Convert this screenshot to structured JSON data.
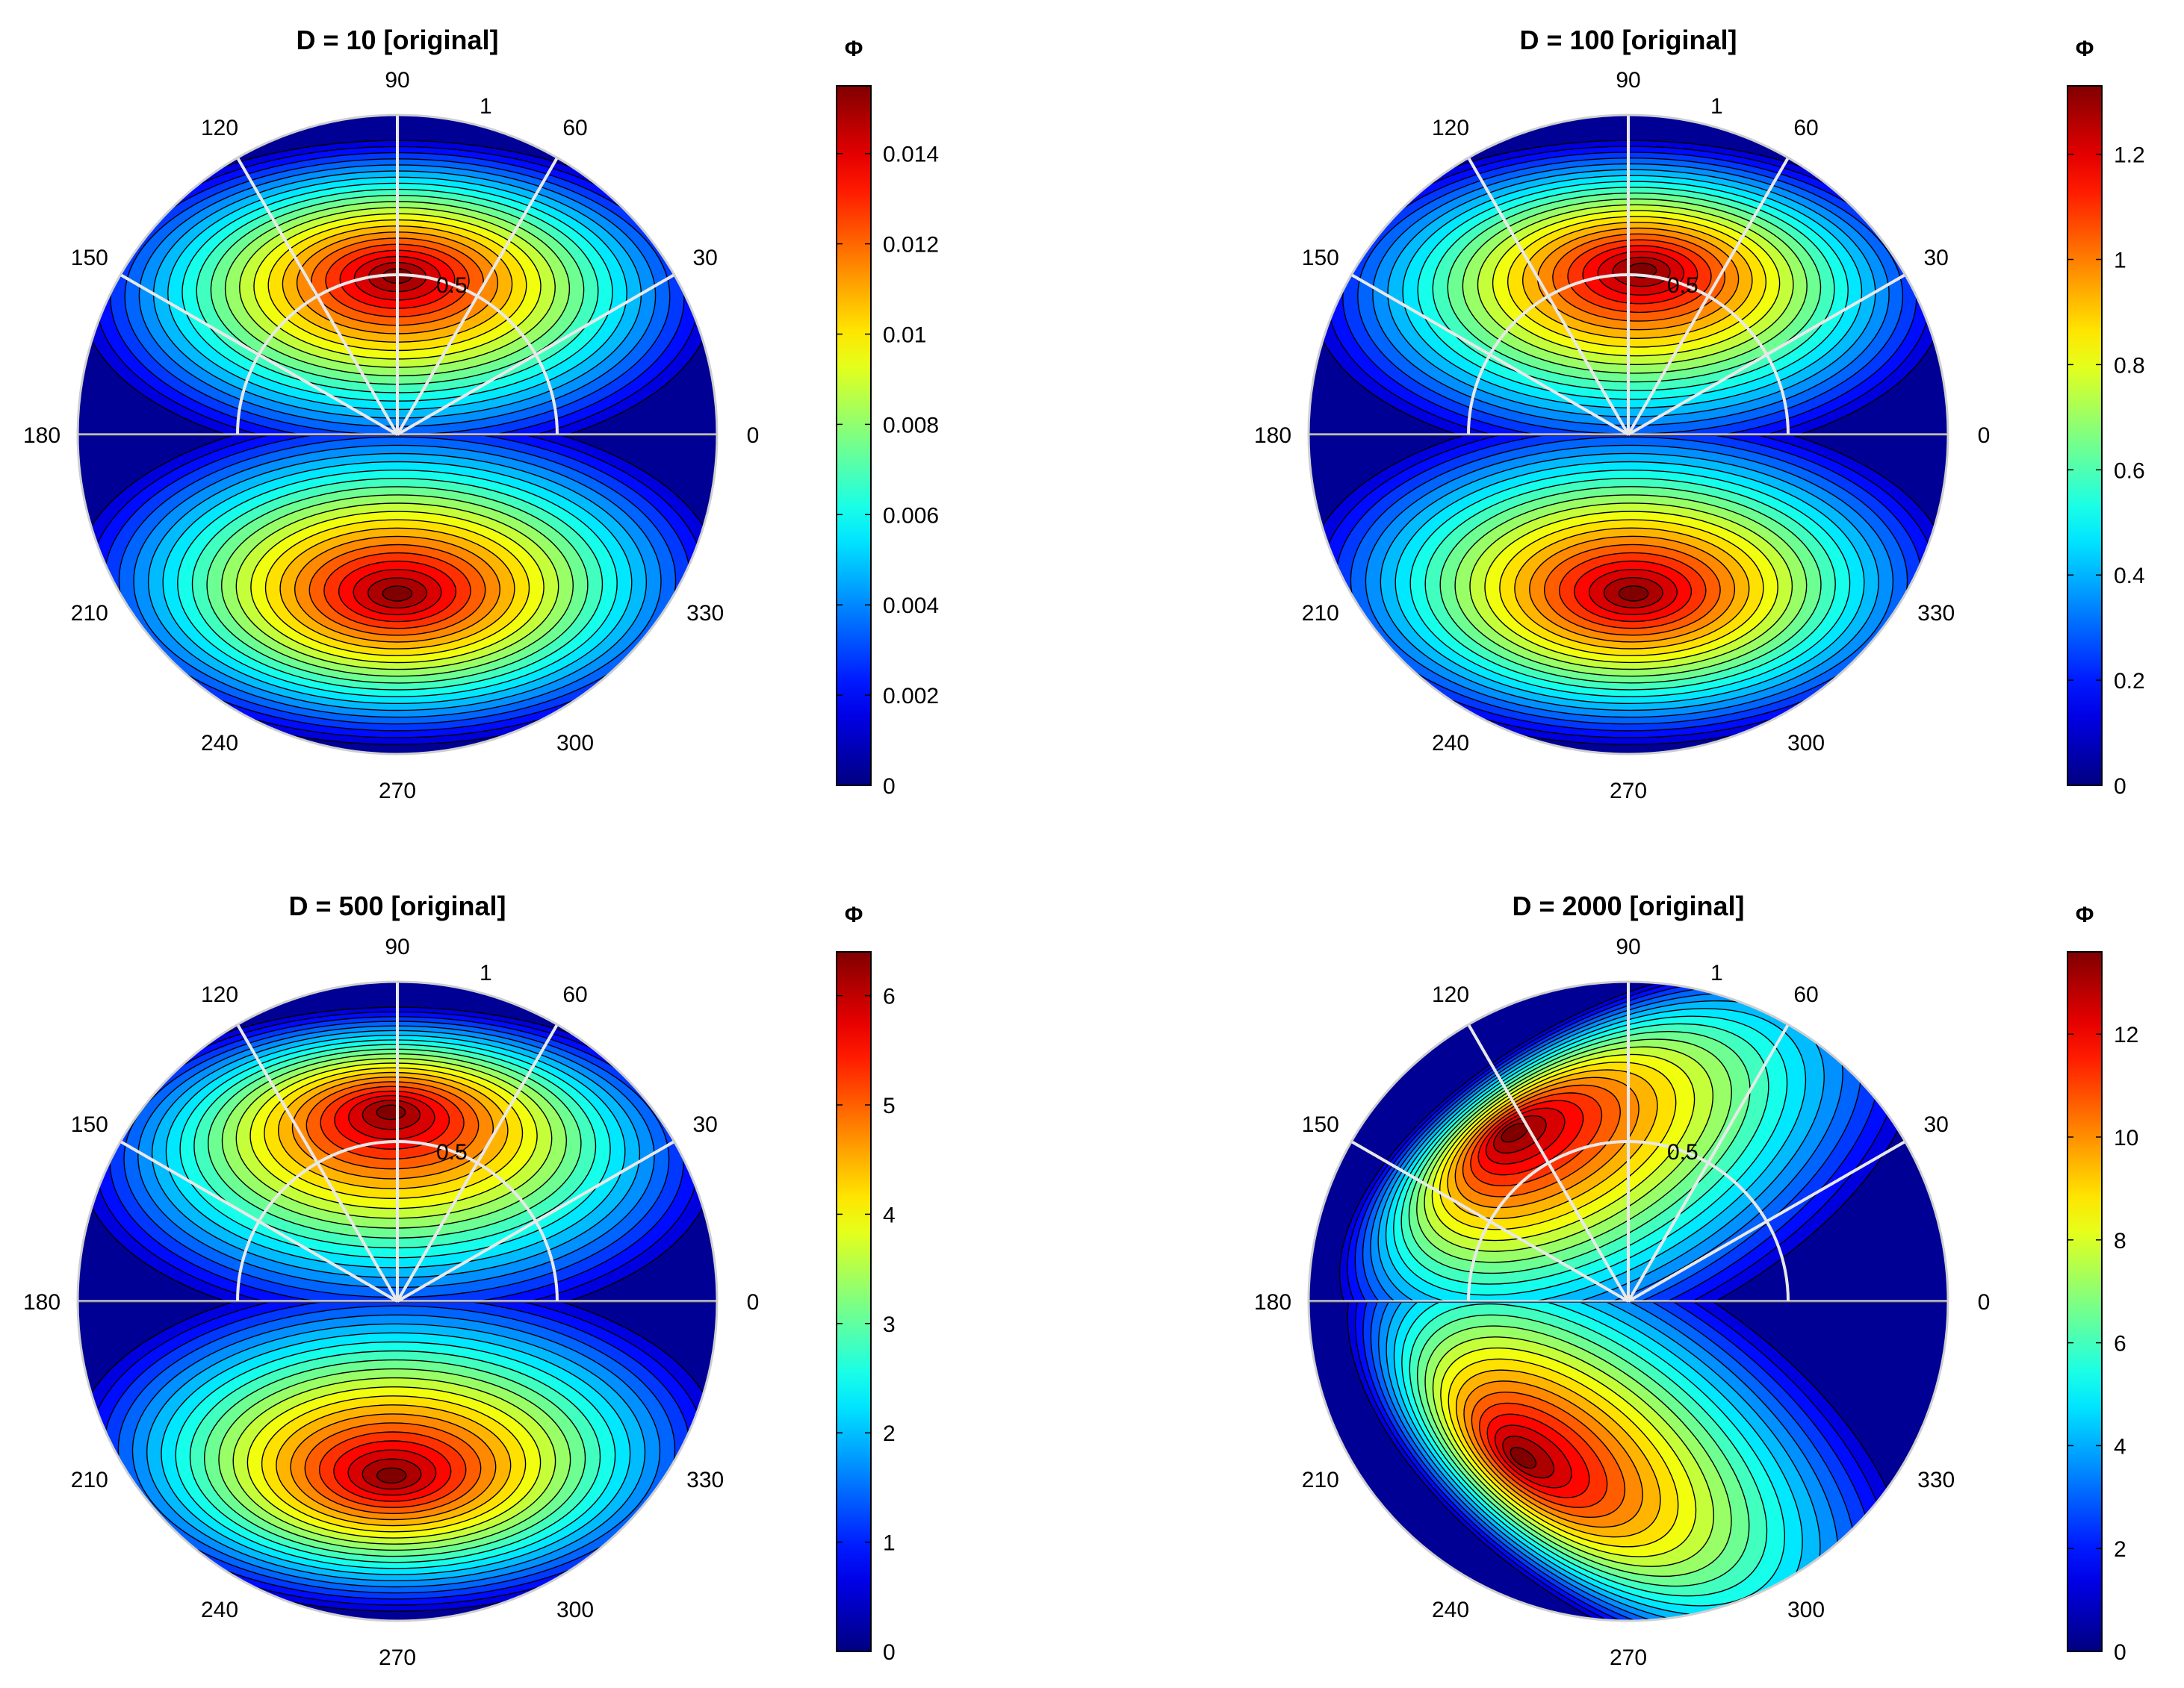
{
  "figure": {
    "description_colormap": "jet",
    "grid_color": "#e8e8e8"
  },
  "chart_data": [
    {
      "type": "contour-polar",
      "title": "D = 10 [original]",
      "angle_ticks": [
        "0",
        "30",
        "60",
        "90",
        "120",
        "150",
        "180",
        "210",
        "240",
        "270",
        "300",
        "330"
      ],
      "radial_ticks": [
        "0.5",
        "1"
      ],
      "rlim": [
        0,
        1
      ],
      "colorbar": {
        "label": "Φ",
        "range": [
          0,
          0.0155
        ],
        "ticks": [
          0,
          0.002,
          0.004,
          0.006,
          0.008,
          0.01,
          0.012,
          0.014
        ],
        "tick_labels": [
          "0",
          "0.002",
          "0.004",
          "0.006",
          "0.008",
          "0.01",
          "0.012",
          "0.014"
        ]
      },
      "peaks": [
        {
          "region": "upper half",
          "angle_deg": 90,
          "r": 0.5,
          "value": 0.0155
        },
        {
          "region": "lower half",
          "angle_deg": 270,
          "r": 0.5,
          "value": 0.0155
        }
      ]
    },
    {
      "type": "contour-polar",
      "title": "D = 100 [original]",
      "angle_ticks": [
        "0",
        "30",
        "60",
        "90",
        "120",
        "150",
        "180",
        "210",
        "240",
        "270",
        "300",
        "330"
      ],
      "radial_ticks": [
        "0.5",
        "1"
      ],
      "rlim": [
        0,
        1
      ],
      "colorbar": {
        "label": "Φ",
        "range": [
          0,
          1.33
        ],
        "ticks": [
          0,
          0.2,
          0.4,
          0.6,
          0.8,
          1,
          1.2
        ],
        "tick_labels": [
          "0",
          "0.2",
          "0.4",
          "0.6",
          "0.8",
          "1",
          "1.2"
        ]
      },
      "peaks": [
        {
          "region": "upper half",
          "angle_deg": 85,
          "r": 0.52,
          "value": 1.33
        },
        {
          "region": "lower half",
          "angle_deg": 272,
          "r": 0.5,
          "value": 1.33
        }
      ]
    },
    {
      "type": "contour-polar",
      "title": "D = 500 [original]",
      "angle_ticks": [
        "0",
        "30",
        "60",
        "90",
        "120",
        "150",
        "180",
        "210",
        "240",
        "270",
        "300",
        "330"
      ],
      "radial_ticks": [
        "0.5",
        "1"
      ],
      "rlim": [
        0,
        1
      ],
      "colorbar": {
        "label": "Φ",
        "range": [
          0,
          6.4
        ],
        "ticks": [
          0,
          1,
          2,
          3,
          4,
          5,
          6
        ],
        "tick_labels": [
          "0",
          "1",
          "2",
          "3",
          "4",
          "5",
          "6"
        ]
      },
      "peaks": [
        {
          "region": "upper half",
          "angle_deg": 92,
          "r": 0.6,
          "value": 6.4
        },
        {
          "region": "lower half",
          "angle_deg": 268,
          "r": 0.55,
          "value": 6.4
        }
      ]
    },
    {
      "type": "contour-polar",
      "title": "D = 2000 [original]",
      "angle_ticks": [
        "0",
        "30",
        "60",
        "90",
        "120",
        "150",
        "180",
        "210",
        "240",
        "270",
        "300",
        "330"
      ],
      "radial_ticks": [
        "0.5",
        "1"
      ],
      "rlim": [
        0,
        1
      ],
      "colorbar": {
        "label": "Φ",
        "range": [
          0,
          13.6
        ],
        "ticks": [
          0,
          2,
          4,
          6,
          8,
          10,
          12
        ],
        "tick_labels": [
          "0",
          "2",
          "4",
          "6",
          "8",
          "10",
          "12"
        ]
      },
      "peaks": [
        {
          "region": "upper half",
          "angle_deg": 125,
          "r": 0.65,
          "value": 13.6
        },
        {
          "region": "lower half",
          "angle_deg": 235,
          "r": 0.6,
          "value": 13.6
        }
      ]
    }
  ]
}
